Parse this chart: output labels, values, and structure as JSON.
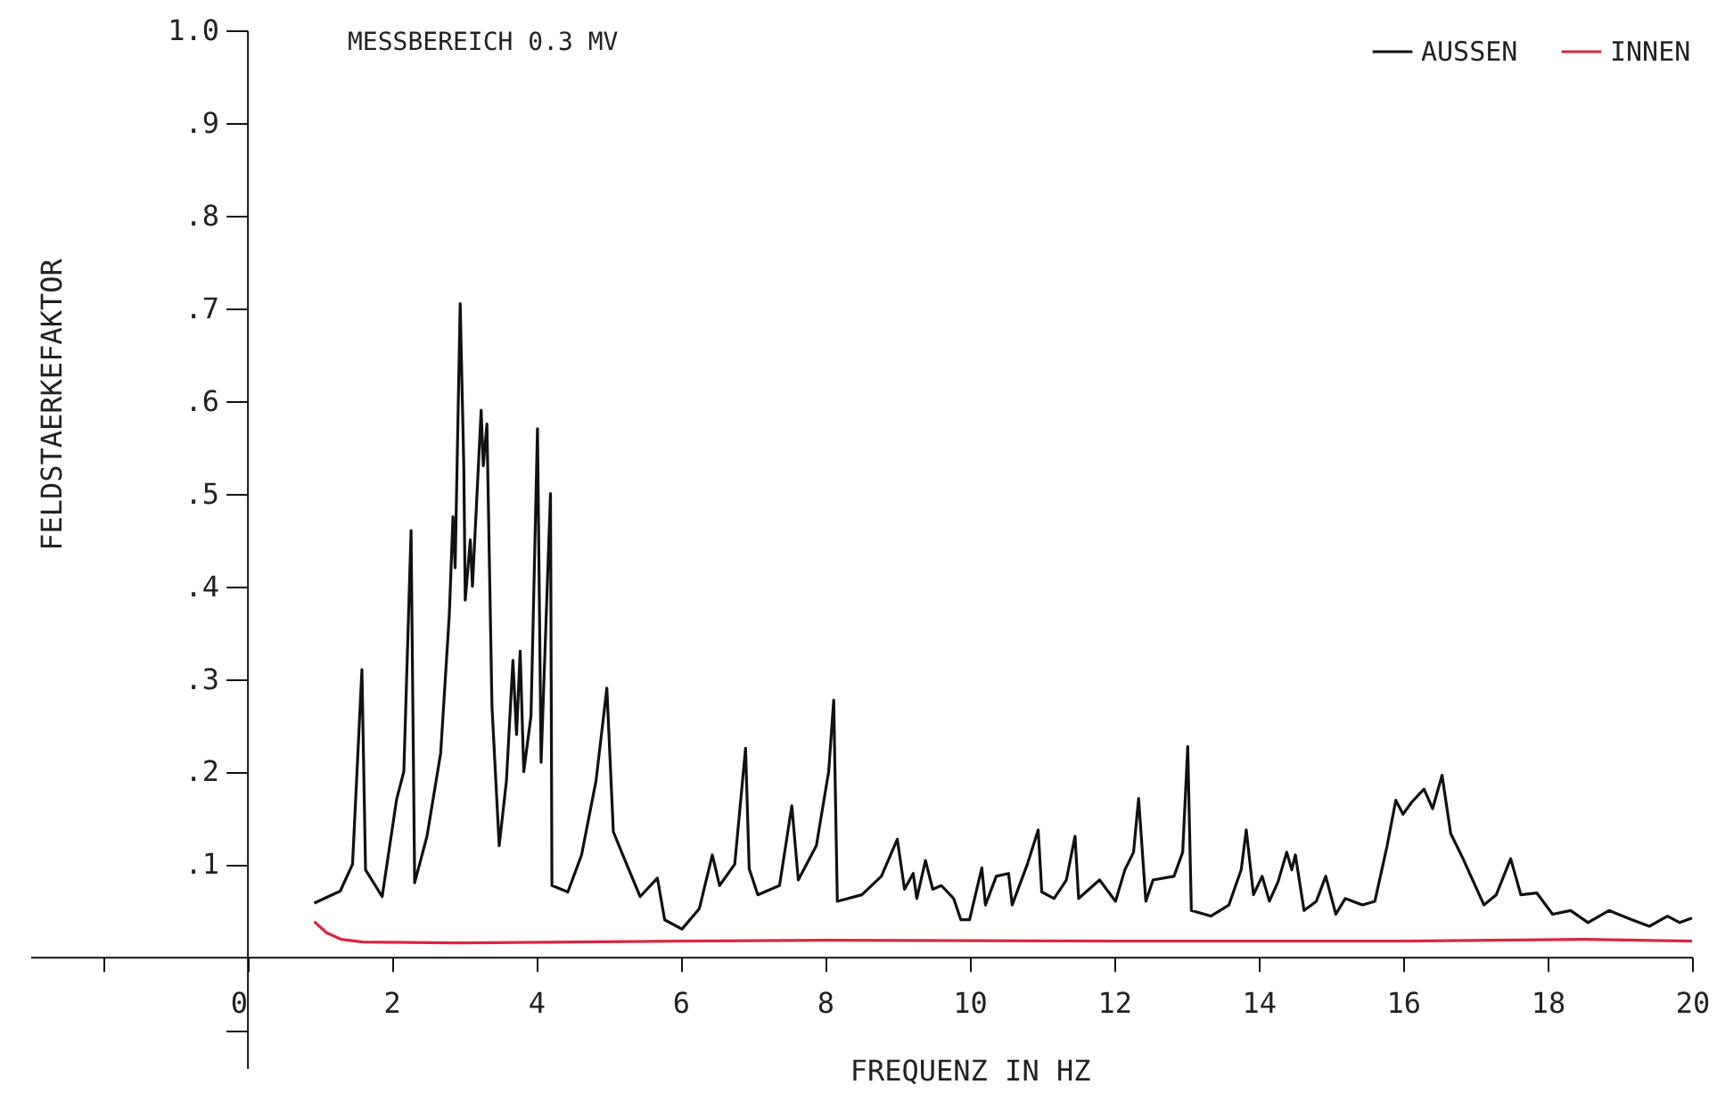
{
  "chart_data": {
    "type": "line",
    "title": "MESSBEREICH  0.3 MV",
    "xlabel": "FREQUENZ IN HZ",
    "ylabel": "FELDSTAERKEFAKTOR",
    "xlim": [
      -3,
      20
    ],
    "ylim": [
      -0.12,
      1.0
    ],
    "xticks": [
      {
        "value": -2,
        "label": null
      },
      0,
      2,
      4,
      6,
      8,
      10,
      12,
      14,
      16,
      18,
      20
    ],
    "yticks": [
      {
        "value": -0.08,
        "label": null
      },
      {
        "value": 0.1,
        "label": ".1"
      },
      {
        "value": 0.2,
        "label": ".2"
      },
      {
        "value": 0.3,
        "label": ".3"
      },
      {
        "value": 0.4,
        "label": ".4"
      },
      {
        "value": 0.5,
        "label": ".5"
      },
      {
        "value": 0.6,
        "label": ".6"
      },
      {
        "value": 0.7,
        "label": ".7"
      },
      {
        "value": 0.8,
        "label": ".8"
      },
      {
        "value": 0.9,
        "label": ".9"
      },
      {
        "value": 1.0,
        "label": "1.0"
      }
    ],
    "grid": false,
    "legend": "top right",
    "marker": "none",
    "line_style": "solid",
    "series": [
      {
        "name": "AUSSEN",
        "color": "#111111",
        "x": [
          0.93,
          1.29,
          1.46,
          1.59,
          1.64,
          1.87,
          2.07,
          2.17,
          2.27,
          2.32,
          2.49,
          2.68,
          2.8,
          2.85,
          2.88,
          2.95,
          3.0,
          3.02,
          3.09,
          3.12,
          3.24,
          3.27,
          3.32,
          3.39,
          3.49,
          3.59,
          3.68,
          3.73,
          3.78,
          3.83,
          3.93,
          4.02,
          4.07,
          4.2,
          4.22,
          4.44,
          4.63,
          4.83,
          4.98,
          5.07,
          5.2,
          5.44,
          5.68,
          5.78,
          6.02,
          6.26,
          6.44,
          6.54,
          6.75,
          6.9,
          6.95,
          7.07,
          7.37,
          7.54,
          7.63,
          7.88,
          8.05,
          8.12,
          8.17,
          8.51,
          8.78,
          9.0,
          9.1,
          9.22,
          9.27,
          9.39,
          9.49,
          9.61,
          9.78,
          9.88,
          10.0,
          10.17,
          10.22,
          10.37,
          10.54,
          10.59,
          10.8,
          10.95,
          11.0,
          11.17,
          11.34,
          11.46,
          11.51,
          11.8,
          12.02,
          12.15,
          12.27,
          12.34,
          12.44,
          12.54,
          12.83,
          12.95,
          13.02,
          13.07,
          13.34,
          13.59,
          13.76,
          13.83,
          13.93,
          14.05,
          14.15,
          14.27,
          14.39,
          14.46,
          14.51,
          14.63,
          14.8,
          14.93,
          15.07,
          15.2,
          15.44,
          15.61,
          15.78,
          15.9,
          16.0,
          16.12,
          16.29,
          16.41,
          16.54,
          16.66,
          16.83,
          17.12,
          17.29,
          17.49,
          17.63,
          17.85,
          18.07,
          18.32,
          18.56,
          18.85,
          19.17,
          19.41,
          19.66,
          19.83,
          20.0
        ],
        "values": [
          0.058,
          0.071,
          0.1,
          0.31,
          0.094,
          0.065,
          0.17,
          0.2,
          0.46,
          0.08,
          0.13,
          0.22,
          0.37,
          0.475,
          0.42,
          0.705,
          0.53,
          0.385,
          0.45,
          0.4,
          0.59,
          0.53,
          0.575,
          0.27,
          0.12,
          0.19,
          0.32,
          0.24,
          0.33,
          0.2,
          0.26,
          0.57,
          0.21,
          0.5,
          0.077,
          0.07,
          0.11,
          0.19,
          0.29,
          0.135,
          0.11,
          0.065,
          0.085,
          0.04,
          0.03,
          0.052,
          0.11,
          0.077,
          0.1,
          0.225,
          0.095,
          0.067,
          0.077,
          0.163,
          0.083,
          0.12,
          0.2,
          0.277,
          0.06,
          0.067,
          0.087,
          0.127,
          0.073,
          0.09,
          0.063,
          0.104,
          0.073,
          0.077,
          0.063,
          0.04,
          0.04,
          0.096,
          0.056,
          0.087,
          0.09,
          0.056,
          0.1,
          0.137,
          0.07,
          0.063,
          0.083,
          0.13,
          0.063,
          0.083,
          0.06,
          0.094,
          0.113,
          0.171,
          0.06,
          0.083,
          0.087,
          0.113,
          0.227,
          0.05,
          0.044,
          0.056,
          0.094,
          0.137,
          0.067,
          0.087,
          0.06,
          0.081,
          0.113,
          0.094,
          0.11,
          0.05,
          0.06,
          0.087,
          0.046,
          0.063,
          0.056,
          0.06,
          0.12,
          0.169,
          0.154,
          0.167,
          0.181,
          0.16,
          0.196,
          0.133,
          0.106,
          0.056,
          0.067,
          0.106,
          0.067,
          0.069,
          0.046,
          0.05,
          0.037,
          0.05,
          0.04,
          0.033,
          0.044,
          0.037,
          0.042
        ]
      },
      {
        "name": "INNEN",
        "color": "#d9263f",
        "x": [
          0.93,
          1.1,
          1.3,
          1.6,
          3,
          6,
          8,
          12,
          16,
          18.5,
          20
        ],
        "values": [
          0.038,
          0.026,
          0.019,
          0.016,
          0.015,
          0.017,
          0.018,
          0.017,
          0.017,
          0.019,
          0.017
        ]
      }
    ]
  }
}
